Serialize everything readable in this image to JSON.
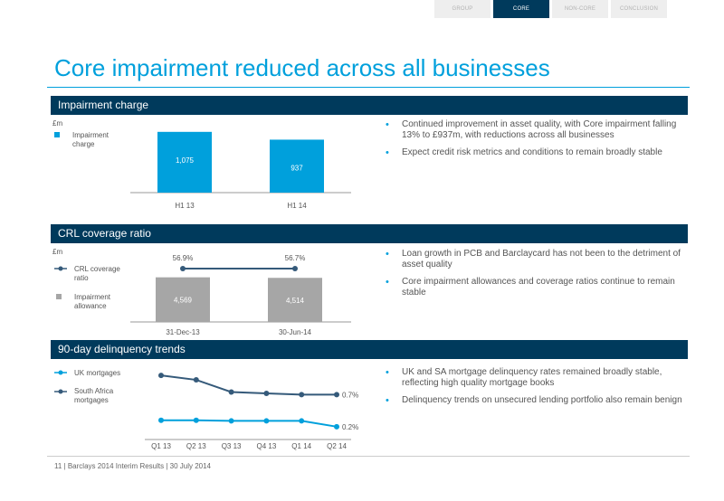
{
  "nav": {
    "tabs": [
      {
        "label": "GROUP",
        "active": false
      },
      {
        "label": "CORE",
        "active": true
      },
      {
        "label": "NON-CORE",
        "active": false
      },
      {
        "label": "CONCLUSION",
        "active": false
      }
    ]
  },
  "page": {
    "title": "Core impairment reduced across all businesses"
  },
  "colors": {
    "navy": "#003a5c",
    "accent": "#00a0dc",
    "grey": "#a6a6a6",
    "dark_line": "#355a7a"
  },
  "sections": {
    "impairment": {
      "title": "Impairment charge",
      "bullets": [
        "Continued improvement in asset quality, with Core impairment falling 13% to £937m, with reductions across all businesses",
        "Expect credit risk metrics and conditions to remain broadly stable"
      ]
    },
    "crl": {
      "title": "CRL coverage ratio",
      "bullets": [
        "Loan growth in PCB and Barclaycard has not been to the detriment of asset quality",
        "Core impairment allowances and coverage ratios continue to remain stable"
      ]
    },
    "delinquency": {
      "title": "90-day delinquency trends",
      "bullets": [
        "UK and SA mortgage delinquency rates remained broadly stable, reflecting high quality mortgage books",
        "Delinquency trends on unsecured lending portfolio also remain benign"
      ]
    }
  },
  "footer": {
    "page_number": "11",
    "text": "| Barclays 2014 Interim Results | 30 July 2014"
  },
  "chart_data": [
    {
      "type": "bar",
      "unit": "£m",
      "categories": [
        "H1 13",
        "H1 14"
      ],
      "series": [
        {
          "name": "Impairment charge",
          "values": [
            1075,
            937
          ],
          "color": "#00a0dc"
        }
      ],
      "value_labels": [
        "1,075",
        "937"
      ],
      "ylim": [
        0,
        1200
      ]
    },
    {
      "type": "bar",
      "unit": "£m",
      "categories": [
        "31-Dec-13",
        "30-Jun-14"
      ],
      "series": [
        {
          "name": "Impairment allowance",
          "values": [
            4569,
            4514
          ],
          "color": "#a6a6a6",
          "labels": [
            "4,569",
            "4,514"
          ]
        },
        {
          "name": "CRL coverage ratio",
          "type": "line",
          "values": [
            56.9,
            56.7
          ],
          "labels": [
            "56.9%",
            "56.7%"
          ],
          "color": "#355a7a"
        }
      ],
      "ylim": [
        0,
        5000
      ]
    },
    {
      "type": "line",
      "categories": [
        "Q1 13",
        "Q2 13",
        "Q3 13",
        "Q4 13",
        "Q1 14",
        "Q2 14"
      ],
      "series": [
        {
          "name": "UK mortgages",
          "values": [
            0.3,
            0.3,
            0.29,
            0.29,
            0.29,
            0.2
          ],
          "end_label": "0.2%",
          "color": "#00a0dc"
        },
        {
          "name": "South Africa mortgages",
          "values": [
            1.0,
            0.93,
            0.74,
            0.72,
            0.7,
            0.7
          ],
          "end_label": "0.7%",
          "color": "#355a7a"
        }
      ],
      "ylim": [
        0,
        1.1
      ]
    }
  ]
}
